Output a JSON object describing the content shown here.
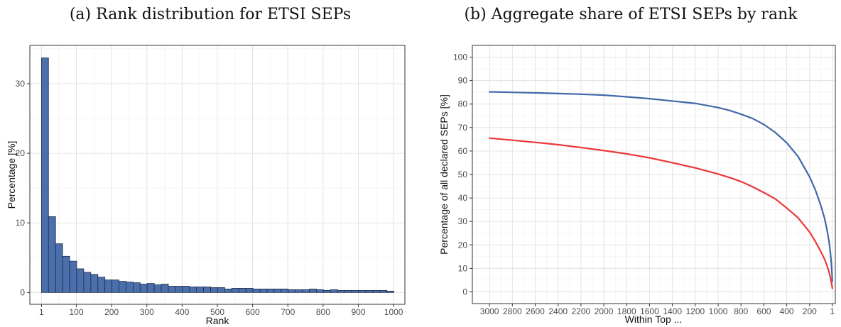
{
  "chart_data": [
    {
      "type": "bar",
      "title": "(a) Rank distribution for ETSI SEPs",
      "xlabel": "Rank",
      "ylabel": "Percentage [%]",
      "xlim": [
        -32,
        1032
      ],
      "ylim": [
        -1.7,
        35.5
      ],
      "x_ticks": [
        1,
        100,
        200,
        300,
        400,
        500,
        600,
        700,
        800,
        900,
        1000
      ],
      "y_ticks": [
        0,
        10,
        20,
        30
      ],
      "bin_width": 20,
      "bin_starts": [
        1,
        21,
        41,
        61,
        81,
        101,
        121,
        141,
        161,
        181,
        201,
        221,
        241,
        261,
        281,
        301,
        321,
        341,
        361,
        381,
        401,
        421,
        441,
        461,
        481,
        501,
        521,
        541,
        561,
        581,
        601,
        621,
        641,
        661,
        681,
        701,
        721,
        741,
        761,
        781,
        801,
        821,
        841,
        861,
        881,
        901,
        921,
        941,
        961,
        981
      ],
      "values": [
        33.7,
        10.9,
        7.0,
        5.2,
        4.5,
        3.4,
        2.9,
        2.6,
        2.2,
        1.8,
        1.8,
        1.6,
        1.5,
        1.4,
        1.2,
        1.3,
        1.1,
        1.2,
        0.9,
        0.9,
        0.9,
        0.8,
        0.8,
        0.8,
        0.7,
        0.7,
        0.5,
        0.6,
        0.6,
        0.6,
        0.5,
        0.5,
        0.5,
        0.5,
        0.5,
        0.4,
        0.4,
        0.4,
        0.5,
        0.4,
        0.3,
        0.4,
        0.3,
        0.3,
        0.3,
        0.3,
        0.3,
        0.3,
        0.3,
        0.2
      ],
      "colors": {
        "bar_fill": "#4a6fab",
        "bar_stroke": "#1f2f4f"
      },
      "grid": true
    },
    {
      "type": "line",
      "title": "(b) Aggregate share of ETSI SEPs by rank",
      "xlabel": "Within Top ...",
      "ylabel": "Percentage of all declared SEPs [%]",
      "x_reversed": true,
      "xlim": [
        3150,
        -25
      ],
      "ylim": [
        -5,
        105
      ],
      "x_ticks": [
        3000,
        2800,
        2600,
        2400,
        2200,
        2000,
        1800,
        1600,
        1400,
        1200,
        1000,
        800,
        600,
        400,
        200,
        1
      ],
      "y_ticks": [
        0,
        10,
        20,
        30,
        40,
        50,
        60,
        70,
        80,
        90,
        100
      ],
      "series": [
        {
          "color": "#4068a8",
          "x": [
            3000,
            2800,
            2600,
            2400,
            2200,
            2000,
            1800,
            1600,
            1400,
            1200,
            1000,
            900,
            800,
            700,
            600,
            500,
            400,
            300,
            200,
            150,
            100,
            70,
            50,
            30,
            20,
            10,
            5,
            1
          ],
          "y": [
            85.2,
            85.0,
            84.8,
            84.5,
            84.2,
            83.8,
            83.1,
            82.3,
            81.3,
            80.3,
            78.5,
            77.3,
            75.7,
            73.9,
            71.3,
            67.9,
            63.5,
            57.6,
            49.0,
            43.5,
            36.5,
            31.5,
            27.0,
            21.5,
            17.5,
            12.5,
            8.5,
            4.5
          ]
        },
        {
          "color": "#ee3636",
          "x": [
            3000,
            2800,
            2600,
            2400,
            2200,
            2000,
            1800,
            1600,
            1400,
            1200,
            1000,
            900,
            800,
            700,
            600,
            500,
            400,
            300,
            200,
            150,
            100,
            70,
            50,
            30,
            20,
            10,
            5,
            1
          ],
          "y": [
            65.5,
            64.6,
            63.7,
            62.7,
            61.5,
            60.2,
            58.8,
            57.1,
            55.0,
            52.8,
            50.2,
            48.7,
            47.0,
            44.8,
            42.3,
            39.6,
            35.7,
            31.5,
            25.5,
            21.5,
            17.0,
            14.0,
            11.5,
            8.5,
            6.5,
            4.2,
            2.8,
            1.5
          ]
        }
      ],
      "grid": true
    }
  ]
}
